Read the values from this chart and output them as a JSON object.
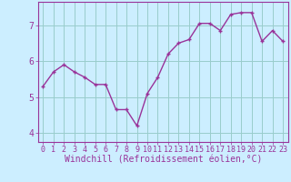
{
  "x": [
    0,
    1,
    2,
    3,
    4,
    5,
    6,
    7,
    8,
    9,
    10,
    11,
    12,
    13,
    14,
    15,
    16,
    17,
    18,
    19,
    20,
    21,
    22,
    23
  ],
  "y": [
    5.3,
    5.7,
    5.9,
    5.7,
    5.55,
    5.35,
    5.35,
    4.65,
    4.65,
    4.2,
    5.1,
    5.55,
    6.2,
    6.5,
    6.6,
    7.05,
    7.05,
    6.85,
    7.3,
    7.35,
    7.35,
    6.55,
    6.85,
    6.55
  ],
  "line_color": "#993399",
  "marker": "+",
  "bg_color": "#cceeff",
  "grid_color": "#99cccc",
  "axis_color": "#993399",
  "xlabel": "Windchill (Refroidissement éolien,°C)",
  "ylabel": "",
  "xlim": [
    -0.5,
    23.5
  ],
  "ylim": [
    3.75,
    7.65
  ],
  "yticks": [
    4,
    5,
    6,
    7
  ],
  "xtick_labels": [
    "0",
    "1",
    "2",
    "3",
    "4",
    "5",
    "6",
    "7",
    "8",
    "9",
    "10",
    "11",
    "12",
    "13",
    "14",
    "15",
    "16",
    "17",
    "18",
    "19",
    "20",
    "21",
    "22",
    "23"
  ],
  "font_color": "#993399",
  "font_size": 6,
  "xlabel_font_size": 7,
  "marker_size": 3,
  "line_width": 1.0,
  "marker_edge_width": 1.0
}
